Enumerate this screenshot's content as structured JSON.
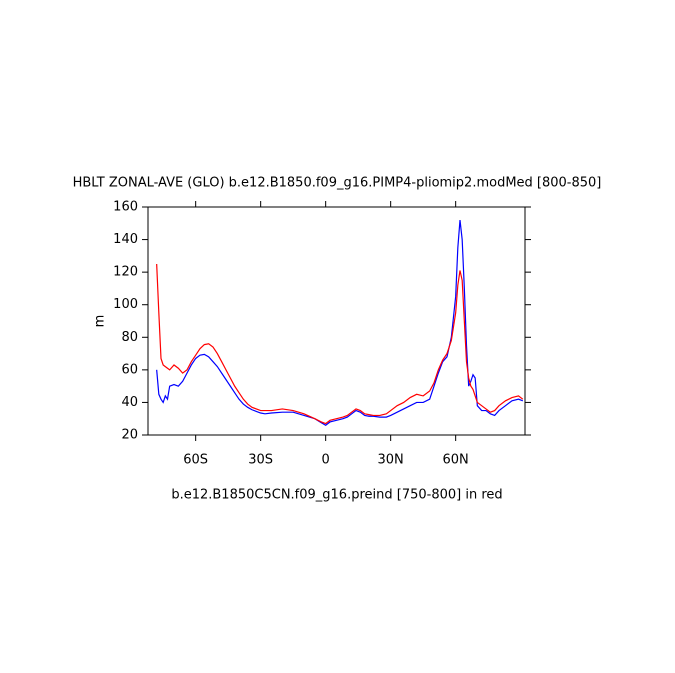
{
  "chart_data": {
    "type": "line",
    "title": "HBLT ZONAL-AVE (GLO) b.e12.B1850.f09_g16.PIMP4-pliomip2.modMed [800-850]",
    "ylabel": "m",
    "xlabel": "b.e12.B1850C5CN.f09_g16.preind [750-800] in red",
    "x": [
      -78,
      -77,
      -76,
      -75,
      -74,
      -73,
      -72,
      -70,
      -68,
      -66,
      -64,
      -62,
      -60,
      -58,
      -56,
      -54,
      -52,
      -50,
      -48,
      -46,
      -44,
      -42,
      -40,
      -38,
      -36,
      -34,
      -32,
      -30,
      -28,
      -25,
      -20,
      -15,
      -10,
      -5,
      -2,
      0,
      2,
      5,
      8,
      10,
      12,
      14,
      16,
      18,
      20,
      22,
      25,
      28,
      30,
      33,
      36,
      39,
      42,
      45,
      48,
      50,
      52,
      54,
      56,
      58,
      60,
      61,
      62,
      63,
      64,
      65,
      66,
      67,
      68,
      69,
      70,
      72,
      74,
      76,
      78,
      80,
      83,
      86,
      89,
      91
    ],
    "series": [
      {
        "color": "#0000ff",
        "values": [
          60,
          45,
          42,
          40,
          44,
          42,
          50,
          51,
          50,
          53,
          58,
          63,
          67,
          69,
          69.5,
          68,
          65,
          62,
          58,
          54,
          50,
          46,
          42,
          39,
          37,
          35.5,
          34.5,
          33.5,
          33,
          33.5,
          34,
          34,
          32,
          30,
          27.5,
          26,
          28,
          29,
          30,
          31,
          33,
          35,
          34,
          32,
          31.5,
          31.5,
          31,
          31,
          32,
          34,
          36,
          38,
          40,
          40,
          42,
          50,
          58,
          65,
          68,
          80,
          105,
          135,
          152,
          140,
          110,
          75,
          50,
          53,
          57,
          55,
          38,
          35,
          35,
          33,
          32,
          35,
          38,
          41,
          42,
          41
        ]
      },
      {
        "color": "#ff0000",
        "values": [
          125,
          95,
          67,
          63,
          62,
          61,
          60,
          63,
          61,
          58,
          60,
          65,
          69,
          73,
          75.5,
          76,
          74,
          70,
          65,
          60,
          55,
          50,
          46,
          42,
          39,
          37,
          36,
          35,
          35,
          35,
          36,
          35,
          33,
          30,
          28,
          27,
          29,
          30,
          31,
          32,
          34,
          36,
          35,
          33,
          32.5,
          32,
          32,
          33,
          35,
          38,
          40,
          43,
          45,
          44,
          47,
          52,
          60,
          66,
          70,
          78,
          95,
          112,
          121,
          115,
          90,
          65,
          55,
          50,
          48,
          44,
          40,
          38,
          36,
          34,
          35,
          38,
          41,
          43,
          44,
          42
        ]
      }
    ],
    "xlim": [
      -82,
      92
    ],
    "xticks": [
      {
        "value": -60,
        "label": "60S"
      },
      {
        "value": -30,
        "label": "30S"
      },
      0,
      {
        "value": 30,
        "label": "30N"
      },
      {
        "value": 60,
        "label": "60N"
      }
    ],
    "ylim": [
      20,
      160
    ],
    "yticks": [
      20,
      40,
      60,
      80,
      100,
      120,
      140,
      160
    ]
  }
}
